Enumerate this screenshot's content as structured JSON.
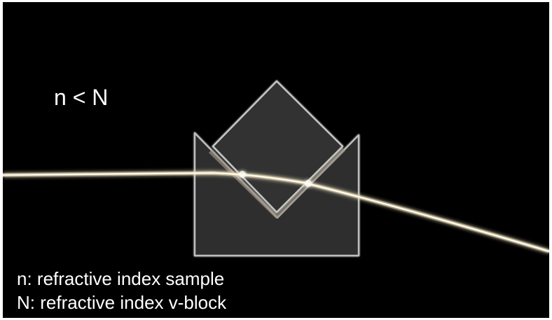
{
  "diagram": {
    "relation_label": "n < N",
    "legend": [
      "n: refractive index sample",
      "N: refractive index v-block"
    ],
    "colors": {
      "background": "#000000",
      "block_fill": "#2e2e2e",
      "block_outline": "#bdbdbd",
      "beam": "#fffbe8",
      "beam_glow": "#d9c9a0",
      "text": "#ffffff"
    },
    "elements": [
      "v-block",
      "sample-prism",
      "light-beam"
    ]
  }
}
